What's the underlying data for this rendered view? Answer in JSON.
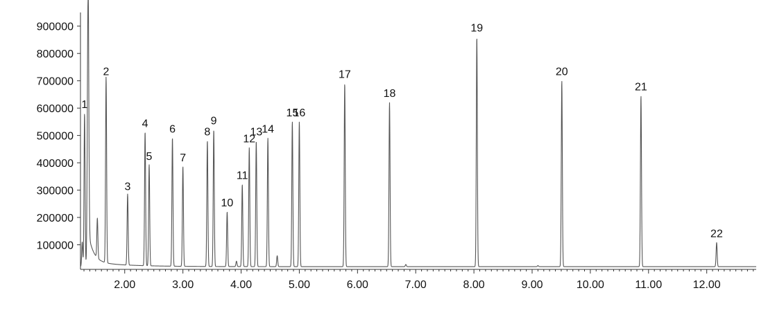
{
  "chart_data": {
    "type": "line",
    "title": "",
    "xlabel": "",
    "ylabel": "",
    "xlim": [
      1.24,
      12.85
    ],
    "ylim": [
      10000,
      950000
    ],
    "grid": false,
    "legend": "none",
    "colors": {
      "trace": "#555555",
      "axis": "#333333",
      "text": "#111111"
    },
    "yticks": [
      {
        "value": 100000,
        "label": "100000"
      },
      {
        "value": 200000,
        "label": "200000"
      },
      {
        "value": 300000,
        "label": "300000"
      },
      {
        "value": 400000,
        "label": "400000"
      },
      {
        "value": 500000,
        "label": "500000"
      },
      {
        "value": 600000,
        "label": "600000"
      },
      {
        "value": 700000,
        "label": "700000"
      },
      {
        "value": 800000,
        "label": "800000"
      },
      {
        "value": 900000,
        "label": "900000"
      }
    ],
    "xticks": [
      {
        "value": 2.0,
        "label": "2.00"
      },
      {
        "value": 3.0,
        "label": "3.00"
      },
      {
        "value": 4.0,
        "label": "4.00"
      },
      {
        "value": 5.0,
        "label": "5.00"
      },
      {
        "value": 6.0,
        "label": "6.00"
      },
      {
        "value": 7.0,
        "label": "7.00"
      },
      {
        "value": 8.0,
        "label": "8.00"
      },
      {
        "value": 9.0,
        "label": "9.00"
      },
      {
        "value": 10.0,
        "label": "10.00"
      },
      {
        "value": 11.0,
        "label": "11.00"
      },
      {
        "value": 12.0,
        "label": "12.00"
      }
    ],
    "baseline": 20000,
    "solvent_peak": {
      "x": 1.37,
      "y": 1000000
    },
    "peaks": [
      {
        "label": "1",
        "x": 1.31,
        "y": 580000
      },
      {
        "label": "2",
        "x": 1.68,
        "y": 700000
      },
      {
        "label": "3",
        "x": 2.05,
        "y": 280000
      },
      {
        "label": "4",
        "x": 2.35,
        "y": 510000
      },
      {
        "label": "5",
        "x": 2.42,
        "y": 390000
      },
      {
        "label": "6",
        "x": 2.82,
        "y": 490000
      },
      {
        "label": "7",
        "x": 3.0,
        "y": 385000
      },
      {
        "label": "8",
        "x": 3.42,
        "y": 480000
      },
      {
        "label": "9",
        "x": 3.53,
        "y": 520000
      },
      {
        "label": "10",
        "x": 3.76,
        "y": 220000
      },
      {
        "label": "11",
        "x": 4.02,
        "y": 320000
      },
      {
        "label": "12",
        "x": 4.14,
        "y": 455000
      },
      {
        "label": "13",
        "x": 4.26,
        "y": 480000
      },
      {
        "label": "14",
        "x": 4.46,
        "y": 490000
      },
      {
        "label": "15",
        "x": 4.88,
        "y": 550000
      },
      {
        "label": "16",
        "x": 5.0,
        "y": 550000
      },
      {
        "label": "17",
        "x": 5.78,
        "y": 690000
      },
      {
        "label": "18",
        "x": 6.55,
        "y": 620000
      },
      {
        "label": "19",
        "x": 8.05,
        "y": 860000
      },
      {
        "label": "20",
        "x": 9.51,
        "y": 700000
      },
      {
        "label": "21",
        "x": 10.87,
        "y": 645000
      },
      {
        "label": "22",
        "x": 12.17,
        "y": 108000
      }
    ],
    "minor_peaks": [
      {
        "x": 1.27,
        "y": 110000
      },
      {
        "x": 1.53,
        "y": 165000
      },
      {
        "x": 3.92,
        "y": 40000
      },
      {
        "x": 4.62,
        "y": 60000
      },
      {
        "x": 6.83,
        "y": 28000
      },
      {
        "x": 9.1,
        "y": 24000
      }
    ]
  }
}
